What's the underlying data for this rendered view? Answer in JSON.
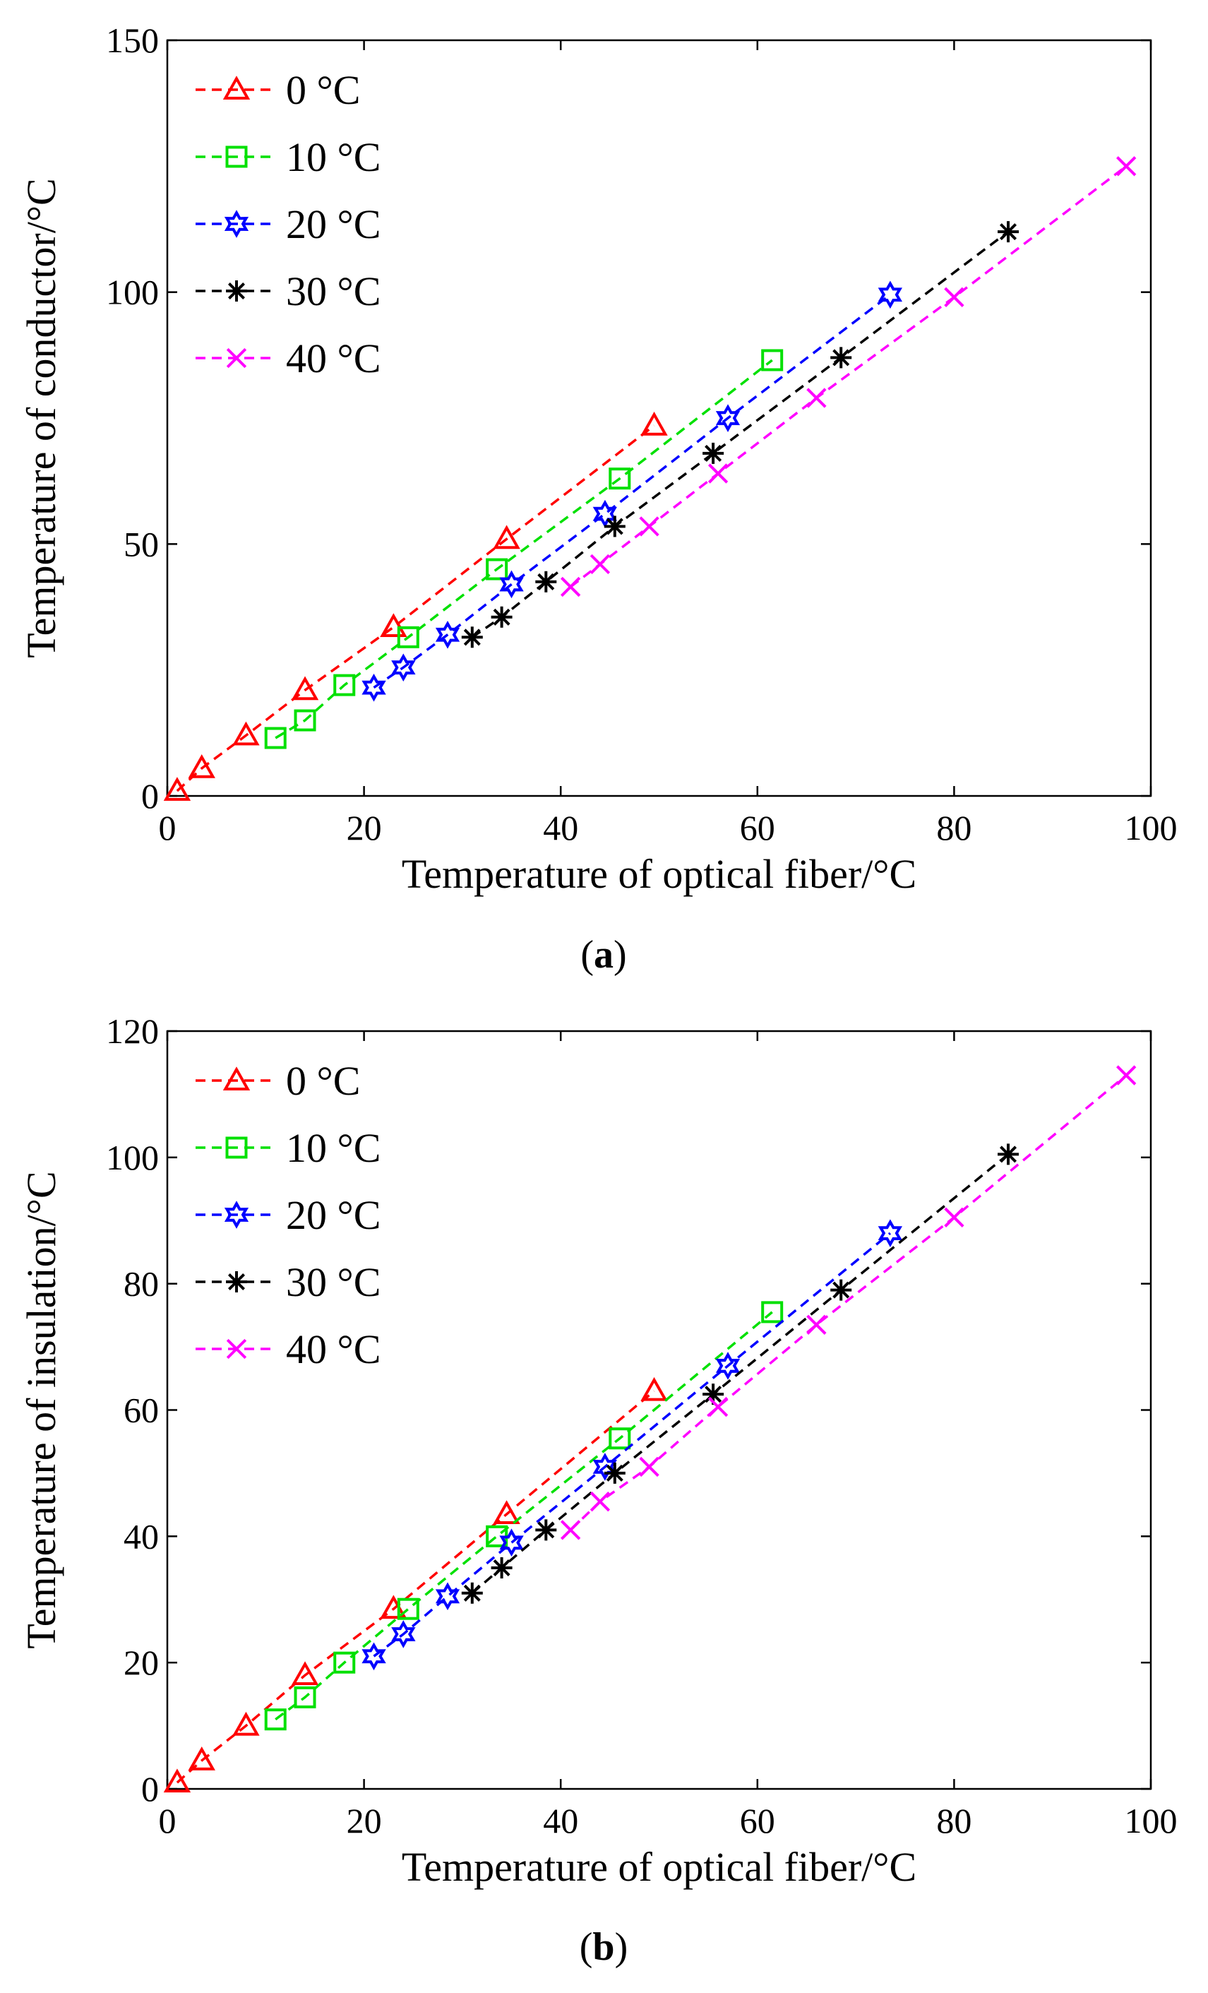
{
  "chart_data": [
    {
      "type": "line",
      "caption_open": "(",
      "caption_letter": "a",
      "caption_close": ")",
      "title": "",
      "xlabel": "Temperature of optical fiber/°C",
      "ylabel": "Temperature of conductor/°C",
      "xlim": [
        0,
        100
      ],
      "ylim": [
        0,
        150
      ],
      "xticks": [
        0,
        20,
        40,
        60,
        80,
        100
      ],
      "yticks": [
        0,
        50,
        100,
        150
      ],
      "legend_position": "top-left",
      "series": [
        {
          "name": "0 °C",
          "color": "#ff0000",
          "marker": "triangle",
          "x": [
            1.0,
            3.5,
            8.0,
            14.0,
            23.0,
            34.5,
            49.5
          ],
          "y": [
            1.0,
            5.5,
            12.0,
            21.0,
            33.5,
            51.0,
            73.5
          ]
        },
        {
          "name": "10 °C",
          "color": "#00e000",
          "marker": "square",
          "x": [
            11.0,
            14.0,
            18.0,
            24.5,
            33.5,
            46.0,
            61.5
          ],
          "y": [
            11.5,
            15.0,
            22.0,
            31.5,
            45.0,
            63.0,
            86.5
          ]
        },
        {
          "name": "20 °C",
          "color": "#0000ff",
          "marker": "hexagram",
          "x": [
            21.0,
            24.0,
            28.5,
            35.0,
            44.5,
            57.0,
            73.5
          ],
          "y": [
            21.5,
            25.5,
            32.0,
            42.0,
            56.0,
            75.0,
            99.5
          ]
        },
        {
          "name": "30 °C",
          "color": "#000000",
          "marker": "asterisk",
          "x": [
            31.0,
            34.0,
            38.5,
            45.5,
            55.5,
            68.5,
            85.5
          ],
          "y": [
            31.5,
            35.5,
            42.5,
            53.5,
            68.0,
            87.0,
            112.0
          ]
        },
        {
          "name": "40 °C",
          "color": "#ff00ff",
          "marker": "x",
          "x": [
            41.0,
            44.0,
            49.0,
            56.0,
            66.0,
            80.0,
            97.5
          ],
          "y": [
            41.5,
            46.0,
            53.5,
            64.0,
            79.0,
            99.0,
            125.0
          ]
        }
      ]
    },
    {
      "type": "line",
      "caption_open": "(",
      "caption_letter": "b",
      "caption_close": ")",
      "title": "",
      "xlabel": "Temperature of optical fiber/°C",
      "ylabel": "Temperature of insulation/°C",
      "xlim": [
        0,
        100
      ],
      "ylim": [
        0,
        120
      ],
      "xticks": [
        0,
        20,
        40,
        60,
        80,
        100
      ],
      "yticks": [
        0,
        20,
        40,
        60,
        80,
        100,
        120
      ],
      "legend_position": "top-left",
      "series": [
        {
          "name": "0 °C",
          "color": "#ff0000",
          "marker": "triangle",
          "x": [
            1.0,
            3.5,
            8.0,
            14.0,
            23.0,
            34.5,
            49.5
          ],
          "y": [
            1.0,
            4.5,
            10.0,
            18.0,
            28.5,
            43.5,
            63.0
          ]
        },
        {
          "name": "10 °C",
          "color": "#00e000",
          "marker": "square",
          "x": [
            11.0,
            14.0,
            18.0,
            24.5,
            33.5,
            46.0,
            61.5
          ],
          "y": [
            11.0,
            14.5,
            20.0,
            28.5,
            40.0,
            55.5,
            75.5
          ]
        },
        {
          "name": "20 °C",
          "color": "#0000ff",
          "marker": "hexagram",
          "x": [
            21.0,
            24.0,
            28.5,
            35.0,
            44.5,
            57.0,
            73.5
          ],
          "y": [
            21.0,
            24.5,
            30.5,
            39.0,
            51.0,
            67.0,
            88.0
          ]
        },
        {
          "name": "30 °C",
          "color": "#000000",
          "marker": "asterisk",
          "x": [
            31.0,
            34.0,
            38.5,
            45.5,
            55.5,
            68.5,
            85.5
          ],
          "y": [
            31.0,
            35.0,
            41.0,
            50.0,
            62.5,
            79.0,
            100.5
          ]
        },
        {
          "name": "40 °C",
          "color": "#ff00ff",
          "marker": "x",
          "x": [
            41.0,
            44.0,
            49.0,
            56.0,
            66.0,
            80.0,
            97.5
          ],
          "y": [
            41.0,
            45.5,
            51.0,
            60.5,
            73.5,
            90.5,
            113.0
          ]
        }
      ]
    }
  ]
}
